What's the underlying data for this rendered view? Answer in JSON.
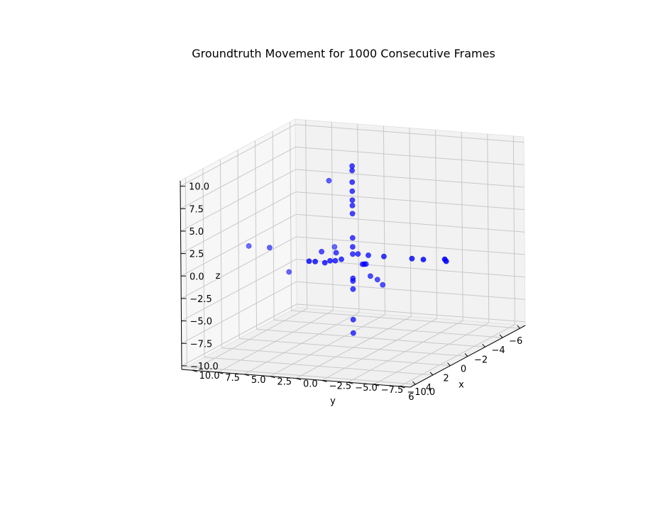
{
  "chart_data": {
    "type": "scatter",
    "projection": "3d",
    "title": "Groundtruth Movement for 1000 Consecutive Frames",
    "xlabel": "x",
    "ylabel": "y",
    "zlabel": "z",
    "xlim": [
      -6.6,
      6.6
    ],
    "ylim": [
      -11,
      11
    ],
    "zlim": [
      -10.4,
      10.6
    ],
    "xticks": [
      -6,
      -4,
      -2,
      0,
      2,
      4,
      6
    ],
    "xtick_labels": [
      "−6",
      "−4",
      "−2",
      "0",
      "2",
      "4",
      "6"
    ],
    "yticks": [
      -10,
      -7.5,
      -5,
      -2.5,
      0,
      2.5,
      5,
      7.5,
      10
    ],
    "ytick_labels": [
      "−10.0",
      "−7.5",
      "−5.0",
      "−2.5",
      "0.0",
      "2.5",
      "5.0",
      "7.5",
      "10.0"
    ],
    "zticks": [
      -10,
      -7.5,
      -5,
      -2.5,
      0,
      2.5,
      5,
      7.5,
      10
    ],
    "ztick_labels": [
      "−10.0",
      "−7.5",
      "−5.0",
      "−2.5",
      "0.0",
      "2.5",
      "5.0",
      "7.5",
      "10.0"
    ],
    "grid": true,
    "marker_color": "#0000ff",
    "points": [
      [
        0,
        0,
        0
      ],
      [
        0,
        0,
        9.8
      ],
      [
        0,
        0,
        9.3
      ],
      [
        0,
        0,
        8.0
      ],
      [
        0,
        0,
        7.0
      ],
      [
        0,
        0,
        6.0
      ],
      [
        0,
        0,
        5.4
      ],
      [
        0,
        0,
        4.5
      ],
      [
        0,
        0,
        1.8
      ],
      [
        0,
        0,
        0.8
      ],
      [
        0,
        0,
        -2.7
      ],
      [
        0,
        0,
        -3.0
      ],
      [
        0,
        0,
        -3.9
      ],
      [
        0,
        0,
        -7.3
      ],
      [
        0,
        0,
        -8.8
      ],
      [
        -0.6,
        0,
        -0.3
      ],
      [
        -1.1,
        0,
        -1.7
      ],
      [
        -1.3,
        0,
        -1.8
      ],
      [
        -1.5,
        0,
        -1.9
      ],
      [
        -2.0,
        0,
        -3.5
      ],
      [
        -2.8,
        0,
        -4.3
      ],
      [
        -3.4,
        0,
        -5.2
      ],
      [
        1.3,
        0,
        0.1
      ],
      [
        2.0,
        0,
        0.3
      ],
      [
        2.6,
        0,
        0.6
      ],
      [
        3.2,
        0,
        0.7
      ],
      [
        4.3,
        0,
        1.4
      ],
      [
        5.0,
        0,
        1.8
      ],
      [
        0,
        -1.5,
        0
      ],
      [
        0,
        -3,
        0
      ],
      [
        0,
        -5.7,
        0
      ],
      [
        0,
        -6.8,
        0
      ],
      [
        0,
        -9,
        0
      ],
      [
        0,
        1.6,
        0
      ],
      [
        0,
        3.0,
        0
      ],
      [
        0,
        8.0,
        0
      ],
      [
        0,
        10.0,
        0
      ],
      [
        -2.8,
        4.6,
        6.3
      ],
      [
        -4.1,
        5.2,
        -1.8
      ],
      [
        -1.6,
        7.5,
        -3.5
      ],
      [
        1.0,
        -9.7,
        0.8
      ]
    ]
  }
}
